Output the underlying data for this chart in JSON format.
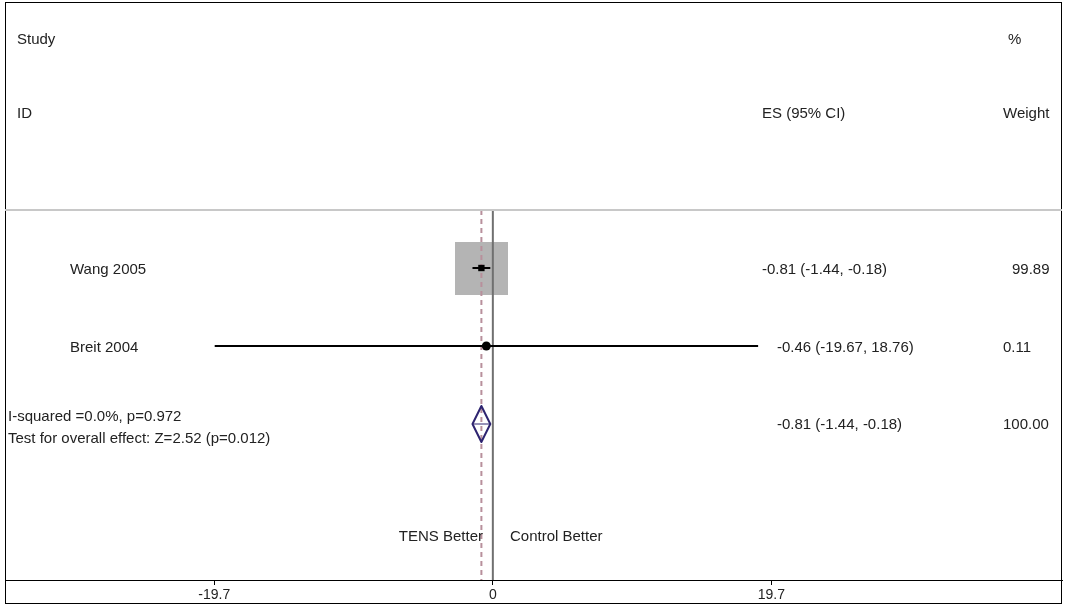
{
  "chart_data": {
    "type": "scatter",
    "orientation": "horizontal",
    "categories": [
      "Wang 2005",
      "Breit 2004",
      null
    ],
    "xlim": [
      -34.5,
      40.25
    ],
    "xticks": [
      -19.7,
      0,
      19.7
    ],
    "series": [
      {
        "marker": "square",
        "color": "#000000",
        "values": [
          -0.81,
          null,
          null
        ],
        "errors": [
          [
            -1.44,
            -0.18
          ],
          null,
          null
        ]
      },
      {
        "marker": "circle",
        "color": "#000000",
        "values": [
          null,
          -0.46,
          null
        ],
        "errors": [
          null,
          [
            -19.67,
            18.76
          ],
          null
        ]
      },
      {
        "marker": "diamond",
        "color": "#2e2470",
        "values": [
          null,
          null,
          -0.81
        ],
        "errors": [
          null,
          null,
          [
            -1.44,
            -0.18
          ]
        ]
      }
    ],
    "ref_lines": [
      {
        "axis": "x",
        "value": 0,
        "color": "#707070"
      },
      {
        "axis": "x",
        "value": -0.81,
        "color": "#b8909c",
        "line_style": "dashed"
      }
    ],
    "annotations": [
      "Study",
      "ID",
      "ES (95% CI)",
      "%",
      "Weight",
      "99.89",
      "0.11",
      "100.00",
      "I-squared =0.0%, p=0.972",
      "Test for overall effect: Z=2.52 (p=0.012)",
      "TENS Better",
      "Control Better",
      "-0.81 (-1.44, -0.18)",
      "-0.46 (-19.67, 18.76)",
      "-0.81 (-1.44, -0.18)"
    ]
  }
}
